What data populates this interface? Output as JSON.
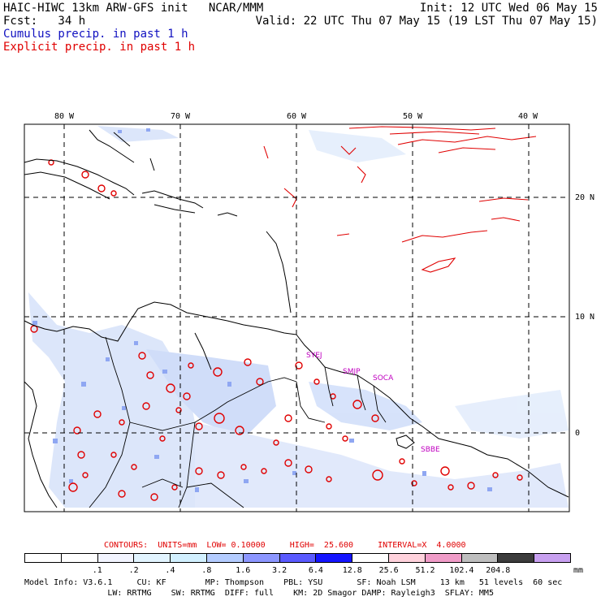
{
  "header": {
    "title": "HAIC-HIWC 13km ARW-GFS init   NCAR/MMM",
    "init": "Init: 12 UTC Wed 06 May 15",
    "fcst": "Fcst:   34 h",
    "valid": "Valid: 22 UTC Thu 07 May 15 (19 LST Thu 07 May 15)",
    "cumulus": "Cumulus precip. in past 1 h",
    "explicit": "Explicit precip. in past 1 h"
  },
  "map": {
    "lon_labels": [
      "80 W",
      "70 W",
      "60 W",
      "50 W",
      "40 W"
    ],
    "lat_labels": [
      "20 N",
      "10 N",
      "0"
    ],
    "stations": [
      "SYEJ",
      "SMJP",
      "SOCA",
      "SBBE"
    ],
    "colors": {
      "coast": "#000000",
      "grid": "#000000",
      "cumulus": "#a8c4f0",
      "explicit": "#e00000"
    }
  },
  "contours": {
    "line": "CONTOURS:  UNITS=mm  LOW= 0.10000     HIGH=  25.600     INTERVAL=X  4.0000"
  },
  "colorbar": {
    "colors": [
      "#ffffff",
      "#ffffff",
      "#f2f4ff",
      "#e2f4ff",
      "#d2f0ff",
      "#b4ccff",
      "#8c96ff",
      "#5a5aff",
      "#1414ff",
      "#ffffff",
      "#ffd2dc",
      "#f09cc8",
      "#bebebe",
      "#3c3c3c",
      "#c8a0f0"
    ],
    "labels": [
      ".1",
      ".2",
      ".4",
      ".8",
      "1.6",
      "3.2",
      "6.4",
      "12.8",
      "25.6",
      "51.2",
      "102.4",
      "204.8"
    ],
    "units": "mm"
  },
  "model_info": {
    "line1": "Model Info: V3.6.1     CU: KF        MP: Thompson    PBL: YSU       SF: Noah LSM     13 km   51 levels  60 sec",
    "line2": "                 LW: RRTMG    SW: RRTMG  DIFF: full    KM: 2D Smagor DAMP: Rayleigh3  SFLAY: MM5"
  }
}
